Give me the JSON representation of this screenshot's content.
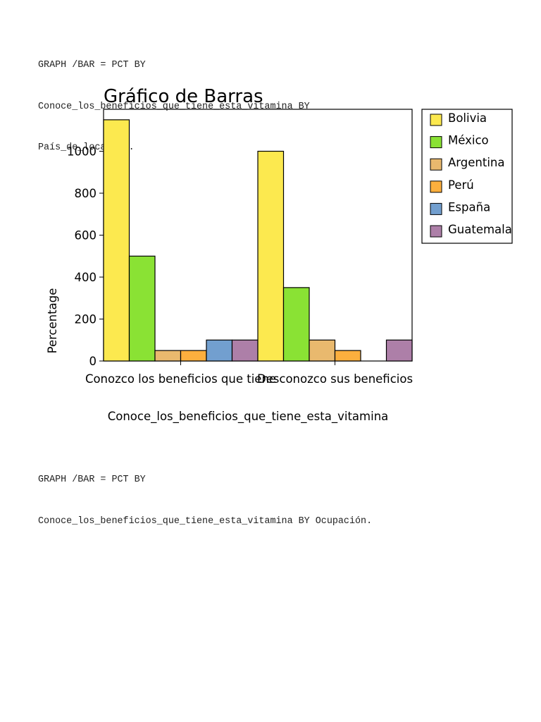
{
  "syntax_top": [
    "GRAPH /BAR = PCT BY",
    "Conoce_los_beneficios_que_tiene_esta_vitamina BY",
    "País_de_locación."
  ],
  "syntax_bottom": [
    "GRAPH /BAR = PCT BY",
    "Conoce_los_beneficios_que_tiene_esta_vitamina BY Ocupación."
  ],
  "chart_data": {
    "type": "bar",
    "title": "Gráfico de Barras",
    "xlabel": "Conoce_los_beneficios_que_tiene_esta_vitamina",
    "ylabel": "Percentage",
    "categories": [
      "Conozco los beneficios que tiene",
      "Desconozco sus beneficios"
    ],
    "ylim": [
      0,
      1200
    ],
    "yticks": [
      0,
      200,
      400,
      600,
      800,
      1000
    ],
    "legend_position": "right-outside",
    "grid": false,
    "series": [
      {
        "name": "Bolivia",
        "color": "#fce94f",
        "values": [
          1150,
          1000
        ]
      },
      {
        "name": "México",
        "color": "#8ae234",
        "values": [
          500,
          350
        ]
      },
      {
        "name": "Argentina",
        "color": "#e9b96e",
        "values": [
          50,
          100
        ]
      },
      {
        "name": "Perú",
        "color": "#fcaf3e",
        "values": [
          50,
          50
        ]
      },
      {
        "name": "España",
        "color": "#729fcf",
        "values": [
          100,
          0
        ]
      },
      {
        "name": "Guatemala",
        "color": "#ad7fa8",
        "values": [
          100,
          100
        ]
      }
    ]
  }
}
